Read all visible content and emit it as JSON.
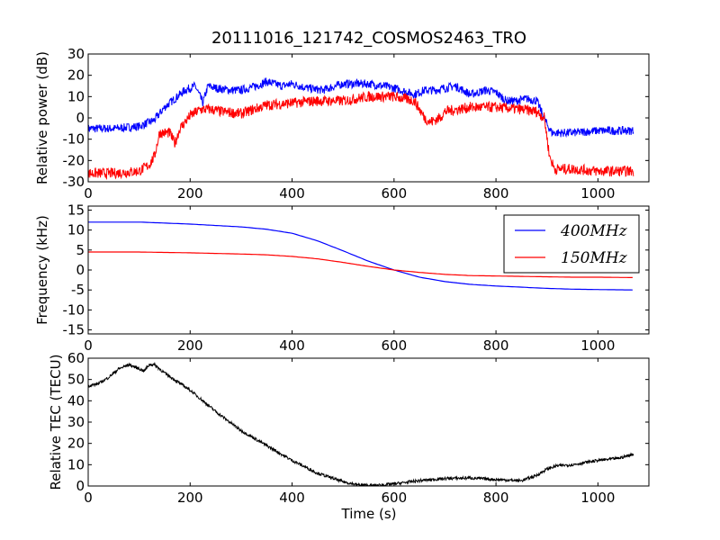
{
  "chart_data": [
    {
      "type": "line",
      "title": "20111016_121742_COSMOS2463_TRO",
      "xlabel": "",
      "ylabel": "Relative power (dB)",
      "xlim": [
        0,
        1100
      ],
      "ylim": [
        -30,
        30
      ],
      "xticks": [
        0,
        200,
        400,
        600,
        800,
        1000
      ],
      "yticks": [
        -30,
        -20,
        -10,
        0,
        10,
        20,
        30
      ],
      "series": [
        {
          "color": "#0000ff",
          "x": [
            0,
            50,
            100,
            130,
            150,
            170,
            190,
            210,
            225,
            235,
            250,
            280,
            300,
            330,
            350,
            380,
            400,
            430,
            460,
            500,
            550,
            580,
            600,
            640,
            660,
            680,
            700,
            720,
            750,
            780,
            800,
            820,
            840,
            860,
            880,
            900,
            910,
            950,
            1000,
            1070
          ],
          "y": [
            -5,
            -5,
            -4,
            -1,
            5,
            9,
            13,
            15,
            7,
            15,
            14,
            13,
            13,
            15,
            17,
            15,
            16,
            14,
            13,
            16,
            16,
            15,
            14,
            11,
            13,
            13,
            14,
            15,
            11,
            13,
            12,
            8,
            8,
            9,
            8,
            -3,
            -7,
            -7,
            -6,
            -6
          ],
          "noise": 2.0
        },
        {
          "color": "#ff0000",
          "x": [
            0,
            50,
            100,
            120,
            130,
            140,
            160,
            170,
            180,
            200,
            220,
            240,
            260,
            300,
            350,
            400,
            450,
            500,
            550,
            600,
            640,
            660,
            670,
            690,
            700,
            750,
            800,
            850,
            880,
            895,
            905,
            915,
            950,
            1000,
            1070
          ],
          "y": [
            -26,
            -26,
            -25,
            -22,
            -18,
            -7,
            -7,
            -12,
            -5,
            1,
            4,
            4,
            3,
            2,
            6,
            7,
            8,
            8,
            10,
            10,
            8,
            0,
            -2,
            0,
            3,
            5,
            5,
            4,
            3,
            0,
            -18,
            -24,
            -24,
            -25,
            -25
          ],
          "noise": 2.5
        }
      ]
    },
    {
      "type": "line",
      "title": "",
      "xlabel": "",
      "ylabel": "Frequency (kHz)",
      "xlim": [
        0,
        1100
      ],
      "ylim": [
        -16,
        16
      ],
      "xticks": [
        0,
        200,
        400,
        600,
        800,
        1000
      ],
      "yticks": [
        -15,
        -10,
        -5,
        0,
        5,
        10,
        15
      ],
      "legend": {
        "placement": "top-right",
        "entries": [
          "400MHz",
          "150MHz"
        ]
      },
      "series": [
        {
          "name": "400MHz",
          "color": "#0000ff",
          "x": [
            0,
            100,
            200,
            300,
            350,
            400,
            450,
            500,
            550,
            600,
            650,
            700,
            750,
            800,
            850,
            900,
            950,
            1000,
            1070
          ],
          "y": [
            12,
            12,
            11.5,
            10.8,
            10.2,
            9.2,
            7.3,
            4.8,
            2.2,
            0,
            -1.8,
            -2.9,
            -3.6,
            -4.0,
            -4.3,
            -4.6,
            -4.8,
            -4.9,
            -5.0
          ]
        },
        {
          "name": "150MHz",
          "color": "#ff0000",
          "x": [
            0,
            100,
            200,
            300,
            350,
            400,
            450,
            500,
            550,
            600,
            650,
            700,
            750,
            800,
            850,
            900,
            950,
            1000,
            1070
          ],
          "y": [
            4.5,
            4.5,
            4.3,
            4.0,
            3.8,
            3.4,
            2.8,
            1.9,
            0.9,
            0,
            -0.6,
            -1.1,
            -1.4,
            -1.5,
            -1.6,
            -1.7,
            -1.8,
            -1.8,
            -1.9
          ]
        }
      ]
    },
    {
      "type": "line",
      "title": "",
      "xlabel": "Time (s)",
      "ylabel": "Relative TEC (TECU)",
      "xlim": [
        0,
        1100
      ],
      "ylim": [
        0,
        60
      ],
      "xticks": [
        0,
        200,
        400,
        600,
        800,
        1000
      ],
      "yticks": [
        0,
        10,
        20,
        30,
        40,
        50,
        60
      ],
      "series": [
        {
          "color": "#000000",
          "x": [
            0,
            20,
            40,
            60,
            80,
            100,
            110,
            120,
            130,
            150,
            200,
            250,
            300,
            350,
            400,
            450,
            500,
            530,
            560,
            600,
            650,
            700,
            750,
            800,
            850,
            880,
            900,
            920,
            950,
            1000,
            1040,
            1070
          ],
          "y": [
            47,
            48,
            51,
            55,
            57,
            55,
            54,
            57,
            57,
            53,
            45,
            35,
            26,
            19,
            12,
            6,
            2,
            0.5,
            0.2,
            1,
            2.5,
            3.5,
            3.8,
            3.0,
            2.5,
            5,
            8,
            9.5,
            10,
            12,
            13,
            15
          ],
          "noise": 0.7
        }
      ]
    }
  ]
}
